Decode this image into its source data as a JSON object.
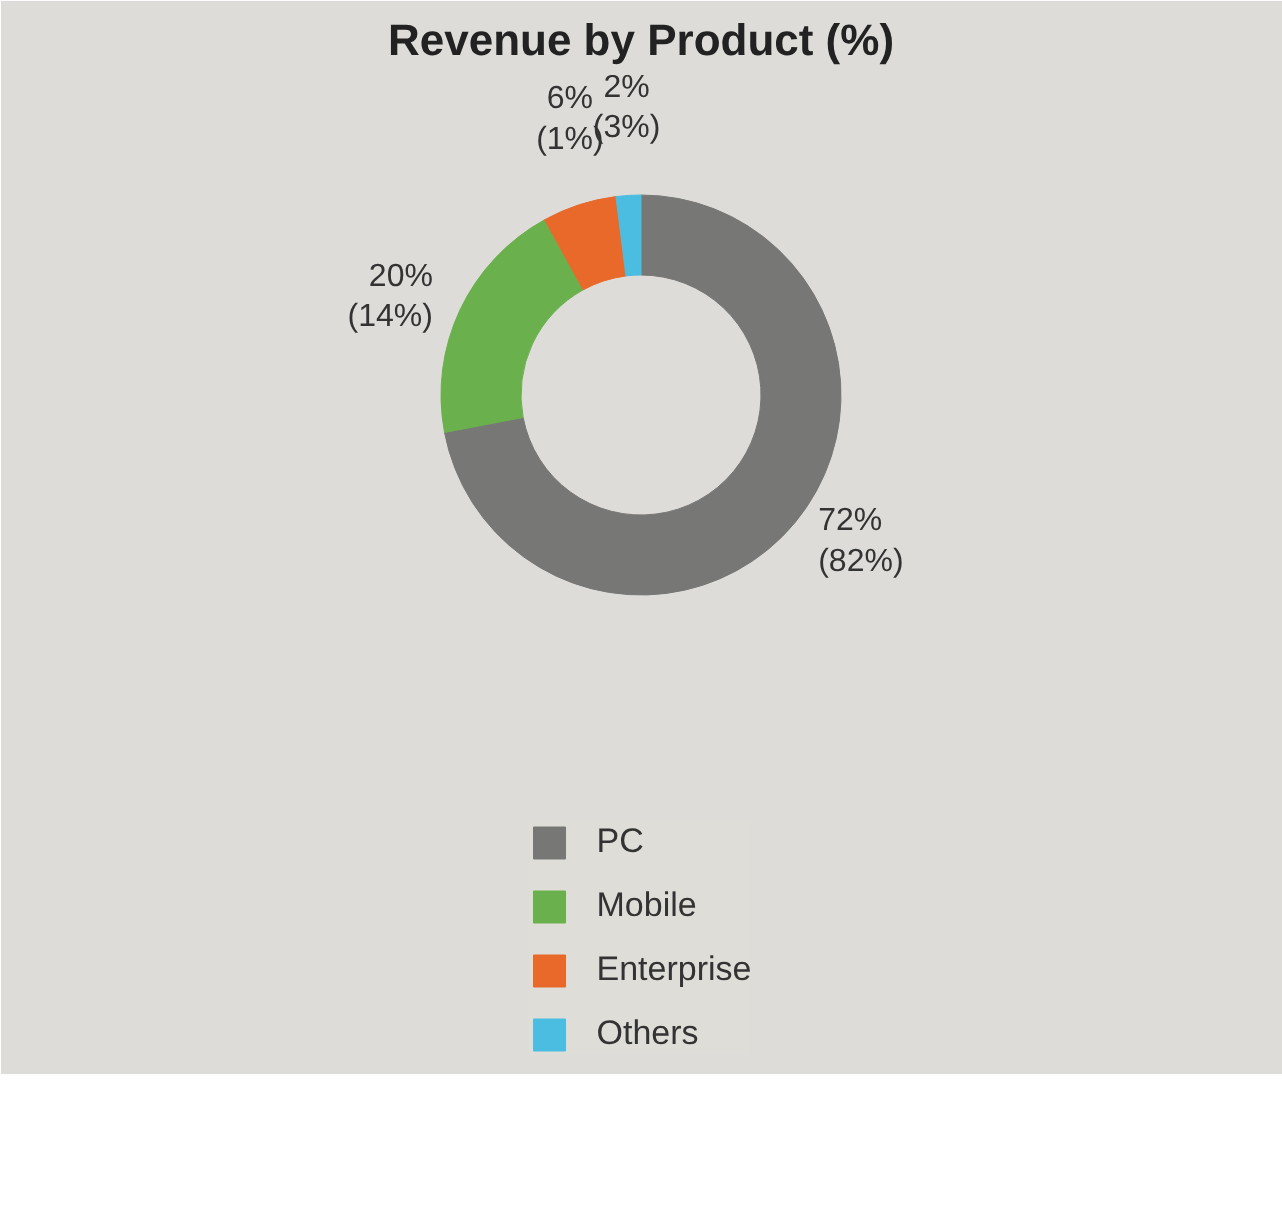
{
  "chart_data": {
    "type": "donut",
    "title": "Revenue by Product (%)",
    "categories": [
      "PC",
      "Mobile",
      "Enterprise",
      "Others"
    ],
    "values": [
      72,
      20,
      6,
      2
    ],
    "colors": [
      "#777876",
      "#6ab04c",
      "#e8692a",
      "#4bbde0"
    ],
    "value_labels": [
      "72%\n(82%)",
      "20%\n(14%)",
      "6%\n(1%)",
      "2%\n(3%)"
    ],
    "legend": "bottom"
  }
}
